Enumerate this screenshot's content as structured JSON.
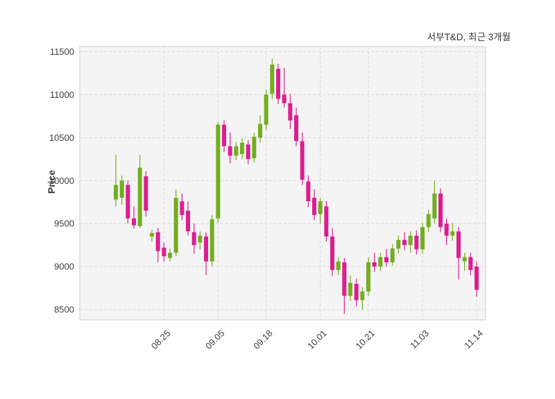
{
  "chart_data": {
    "type": "candlestick",
    "title": "서부T&D, 최근 3개월",
    "ylabel": "Price",
    "ylim": [
      8380,
      11560
    ],
    "xlim": [
      -6,
      61.5
    ],
    "y_ticks": [
      8500,
      9000,
      9500,
      10000,
      10500,
      11000,
      11500
    ],
    "x_ticks": [
      {
        "index": 8,
        "label": "08.25"
      },
      {
        "index": 17,
        "label": "09.05"
      },
      {
        "index": 25,
        "label": "09.18"
      },
      {
        "index": 34,
        "label": "10.01"
      },
      {
        "index": 42,
        "label": "10.21"
      },
      {
        "index": 51,
        "label": "11.03"
      },
      {
        "index": 60,
        "label": "11.14"
      }
    ],
    "grid": true,
    "grid_style": "dashed",
    "legend": "none",
    "colors": {
      "up": "#74ad21",
      "down": "#dc1e8e",
      "plot_background": "#f4f4f4",
      "grid": "#d7d7d7",
      "axis_border": "#cccccc",
      "tick_text": "#3d3d3d",
      "title_text": "#333333"
    },
    "candles": {
      "columns": [
        "open",
        "high",
        "low",
        "close"
      ],
      "rows": [
        [
          9780,
          10300,
          9700,
          9950
        ],
        [
          9800,
          10060,
          9720,
          10000
        ],
        [
          9950,
          10000,
          9500,
          9560
        ],
        [
          9560,
          9700,
          9440,
          9480
        ],
        [
          9470,
          10300,
          9450,
          10150
        ],
        [
          10050,
          10110,
          9580,
          9650
        ],
        [
          9350,
          9430,
          9290,
          9390
        ],
        [
          9400,
          9450,
          9050,
          9180
        ],
        [
          9220,
          9280,
          9060,
          9120
        ],
        [
          9100,
          9210,
          9060,
          9160
        ],
        [
          9160,
          9900,
          9120,
          9800
        ],
        [
          9760,
          9850,
          9540,
          9600
        ],
        [
          9650,
          9760,
          9360,
          9410
        ],
        [
          9400,
          9500,
          9150,
          9250
        ],
        [
          9280,
          9410,
          9200,
          9360
        ],
        [
          9350,
          9400,
          8900,
          9060
        ],
        [
          9060,
          9600,
          9000,
          9550
        ],
        [
          9560,
          10680,
          9510,
          10650
        ],
        [
          10650,
          10700,
          10330,
          10400
        ],
        [
          10400,
          10560,
          10200,
          10290
        ],
        [
          10290,
          10450,
          10240,
          10400
        ],
        [
          10310,
          10490,
          10250,
          10440
        ],
        [
          10420,
          10470,
          10190,
          10250
        ],
        [
          10260,
          10560,
          10210,
          10510
        ],
        [
          10500,
          10760,
          10440,
          10660
        ],
        [
          10650,
          11060,
          10590,
          11000
        ],
        [
          11010,
          11420,
          10950,
          11350
        ],
        [
          11300,
          11360,
          10890,
          10950
        ],
        [
          11000,
          11310,
          10850,
          10900
        ],
        [
          10900,
          11010,
          10600,
          10700
        ],
        [
          10760,
          10850,
          10400,
          10460
        ],
        [
          10460,
          10560,
          9950,
          10010
        ],
        [
          9990,
          10060,
          9690,
          9760
        ],
        [
          9800,
          9900,
          9540,
          9600
        ],
        [
          9610,
          9800,
          9500,
          9760
        ],
        [
          9700,
          9760,
          9290,
          9350
        ],
        [
          9350,
          9450,
          8890,
          8960
        ],
        [
          8960,
          9110,
          8900,
          9060
        ],
        [
          9050,
          9100,
          8450,
          8660
        ],
        [
          8660,
          8900,
          8600,
          8810
        ],
        [
          8800,
          8860,
          8540,
          8610
        ],
        [
          8610,
          8760,
          8500,
          8710
        ],
        [
          8710,
          9110,
          8660,
          9050
        ],
        [
          9050,
          9160,
          8940,
          9000
        ],
        [
          9000,
          9160,
          8950,
          9110
        ],
        [
          9110,
          9200,
          9000,
          9050
        ],
        [
          9050,
          9260,
          9010,
          9210
        ],
        [
          9210,
          9360,
          9150,
          9310
        ],
        [
          9310,
          9400,
          9190,
          9250
        ],
        [
          9250,
          9410,
          9160,
          9360
        ],
        [
          9360,
          9420,
          9140,
          9200
        ],
        [
          9200,
          9510,
          9150,
          9460
        ],
        [
          9460,
          9660,
          9400,
          9610
        ],
        [
          9560,
          10000,
          9500,
          9850
        ],
        [
          9850,
          9910,
          9400,
          9460
        ],
        [
          9500,
          9560,
          9250,
          9360
        ],
        [
          9360,
          9510,
          9300,
          9410
        ],
        [
          9410,
          9460,
          8850,
          9100
        ],
        [
          9060,
          9160,
          8950,
          9110
        ],
        [
          9110,
          9160,
          8900,
          8960
        ],
        [
          9000,
          9060,
          8650,
          8730
        ]
      ]
    }
  }
}
